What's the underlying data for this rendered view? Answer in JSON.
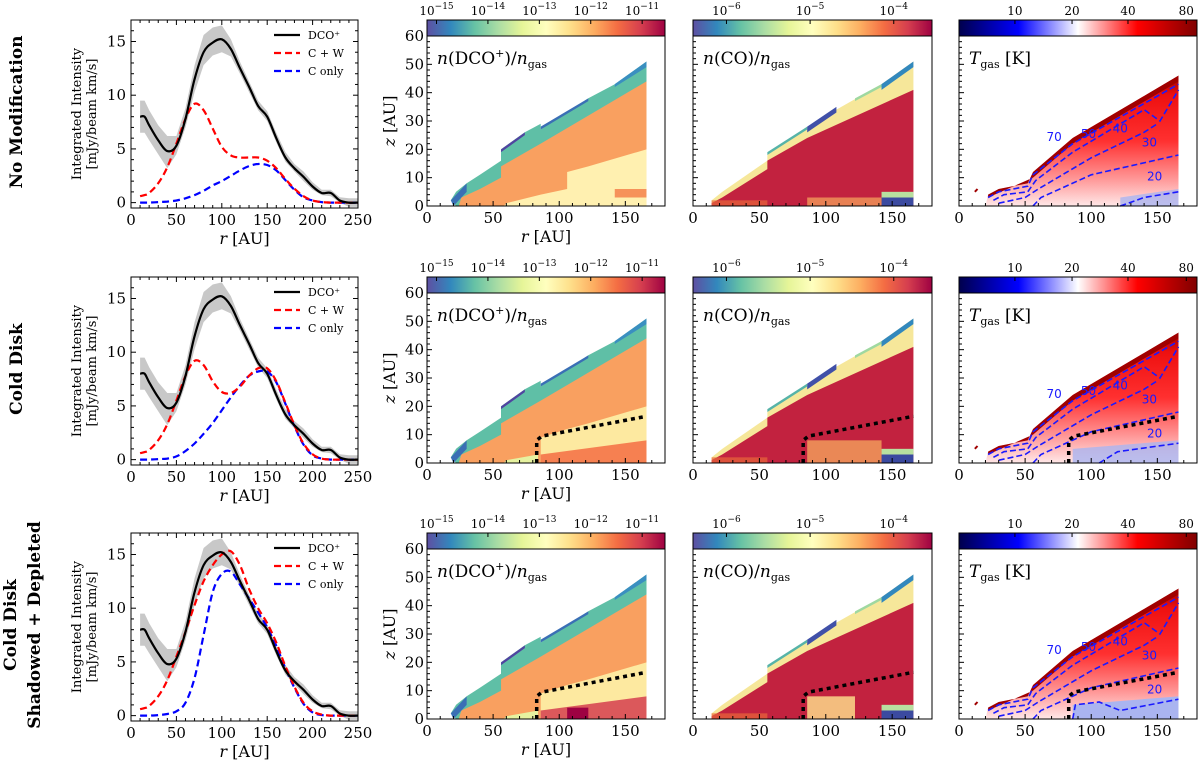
{
  "figure": {
    "rows": [
      {
        "label": [
          "No Modification"
        ],
        "key": "nomod"
      },
      {
        "label": [
          "Cold Disk"
        ],
        "key": "cold"
      },
      {
        "label": [
          "Cold Disk",
          "Shadowed + Depleted"
        ],
        "key": "shadow"
      }
    ],
    "line_xlabel": "r [AU]",
    "line_ylabel": [
      "Integrated Intensity",
      "[mJy/beam km/s]"
    ],
    "heat_xlabel": "r [AU]",
    "heat_ylabel": "z [AU]",
    "panel_titles": {
      "dco": "n(DCO⁺)/n_gas",
      "co": "n(CO)/n_gas",
      "tgas": "T_gas [K]"
    },
    "colorbars": {
      "dco": {
        "ticks": [
          "10^-15",
          "10^-14",
          "10^-13",
          "10^-12",
          "10^-11"
        ],
        "cmap": "Spectral_r"
      },
      "co": {
        "ticks": [
          "10^-6",
          "10^-5",
          "10^-4"
        ],
        "cmap": "Spectral_r"
      },
      "tgas": {
        "ticks": [
          "10",
          "20",
          "40",
          "80"
        ],
        "cmap": "seismic"
      }
    },
    "colors": {
      "dco_line": "#000000",
      "cw_line": "#ff0000",
      "conly_line": "#0000ff",
      "band": "#c8c8c8",
      "contour": "#1a1aff",
      "boundary": "#000000"
    }
  },
  "chart_data": [
    {
      "type": "line",
      "panel": "radial-profile",
      "rows": [
        "No Modification",
        "Cold Disk",
        "Cold Disk Shadowed + Depleted"
      ],
      "xlabel": "r [AU]",
      "ylabel": "Integrated Intensity [mJy/beam km/s]",
      "xlim": [
        0,
        250
      ],
      "ylim": [
        -0.5,
        17
      ],
      "xticks": [
        0,
        50,
        100,
        150,
        200,
        250
      ],
      "yticks": [
        0,
        5,
        10,
        15
      ],
      "legend": {
        "placement": "top-right",
        "entries": [
          "DCO⁺",
          "C + W",
          "C only"
        ]
      },
      "x": [
        10,
        15,
        20,
        30,
        40,
        50,
        60,
        70,
        80,
        90,
        100,
        110,
        120,
        130,
        140,
        150,
        160,
        170,
        180,
        190,
        200,
        210,
        220,
        230,
        240,
        250
      ],
      "observed": {
        "name": "DCO⁺",
        "values": [
          8.0,
          8.0,
          7.2,
          5.8,
          4.8,
          5.3,
          7.8,
          11.5,
          14.0,
          14.9,
          15.2,
          14.3,
          12.5,
          10.8,
          9.0,
          8.0,
          6.0,
          4.2,
          3.2,
          2.4,
          1.5,
          0.9,
          0.9,
          0.2,
          0.0,
          0.0
        ],
        "band_low": [
          6.5,
          6.5,
          5.8,
          4.5,
          3.2,
          4.5,
          7.0,
          10.3,
          12.8,
          13.7,
          14.0,
          13.6,
          12.0,
          10.3,
          8.6,
          7.6,
          5.6,
          3.8,
          2.9,
          2.0,
          1.2,
          0.7,
          0.6,
          0.0,
          -0.4,
          -0.4
        ],
        "band_high": [
          9.5,
          9.5,
          8.6,
          7.2,
          6.2,
          6.2,
          8.8,
          12.8,
          15.6,
          16.3,
          16.5,
          15.2,
          13.1,
          11.3,
          9.5,
          8.5,
          6.5,
          4.7,
          3.6,
          2.9,
          1.9,
          1.2,
          1.2,
          0.5,
          0.4,
          0.4
        ]
      },
      "models": {
        "No Modification": {
          "C + W": [
            0.6,
            0.7,
            0.9,
            1.8,
            3.3,
            5.5,
            7.8,
            9.2,
            8.6,
            6.9,
            5.2,
            4.4,
            4.2,
            4.2,
            4.2,
            3.9,
            3.2,
            2.2,
            1.3,
            0.6,
            0.2,
            0.05,
            0.0,
            0.0,
            0.0,
            0.0
          ],
          "C only": [
            0.0,
            0.0,
            0.0,
            0.05,
            0.1,
            0.2,
            0.4,
            0.7,
            1.1,
            1.6,
            2.0,
            2.5,
            3.0,
            3.4,
            3.6,
            3.5,
            3.0,
            2.1,
            1.2,
            0.5,
            0.2,
            0.05,
            0.0,
            0.0,
            0.0,
            0.0
          ]
        },
        "Cold Disk": {
          "C + W": [
            0.6,
            0.7,
            0.9,
            1.8,
            3.3,
            5.5,
            7.8,
            9.2,
            8.8,
            7.3,
            6.3,
            6.2,
            6.8,
            7.8,
            8.5,
            8.5,
            7.3,
            5.3,
            3.2,
            1.5,
            0.5,
            0.1,
            0.0,
            0.0,
            0.0,
            0.0
          ],
          "C only": [
            0.0,
            0.0,
            0.0,
            0.05,
            0.1,
            0.3,
            0.8,
            1.5,
            2.4,
            3.4,
            4.6,
            5.8,
            6.9,
            7.8,
            8.2,
            8.2,
            7.2,
            5.2,
            3.1,
            1.4,
            0.4,
            0.1,
            0.0,
            0.0,
            0.0,
            0.0
          ]
        },
        "Cold Disk Shadowed + Depleted": {
          "C + W": [
            0.6,
            0.7,
            0.9,
            1.8,
            3.3,
            5.5,
            7.8,
            10.3,
            12.5,
            14.0,
            15.0,
            15.3,
            14.0,
            11.8,
            10.0,
            8.6,
            6.8,
            4.6,
            2.7,
            1.2,
            0.4,
            0.1,
            0.0,
            0.0,
            0.0,
            0.0
          ],
          "C only": [
            0.0,
            0.0,
            0.0,
            0.05,
            0.15,
            0.4,
            1.2,
            3.5,
            7.5,
            11.5,
            13.2,
            13.4,
            12.2,
            10.9,
            9.6,
            8.2,
            6.5,
            4.4,
            2.6,
            1.1,
            0.3,
            0.05,
            0.0,
            0.0,
            0.0,
            0.0
          ]
        }
      }
    },
    {
      "type": "heatmap",
      "panel": "n(DCO+)/n_gas",
      "xlabel": "r [AU]",
      "ylabel": "z [AU]",
      "xlim": [
        0,
        180
      ],
      "ylim": [
        0,
        60
      ],
      "xticks": [
        0,
        50,
        100,
        150
      ],
      "yticks": [
        0,
        10,
        20,
        30,
        40,
        50,
        60
      ],
      "colorbar": {
        "scale": "log",
        "range": [
          1e-15,
          2e-11
        ],
        "ticks": [
          "10^-15",
          "10^-14",
          "10^-13",
          "10^-12",
          "10^-11"
        ]
      },
      "disk_extent_r": [
        18,
        166
      ],
      "surface_z": {
        "r": [
          18,
          30,
          56,
          74,
          86,
          122,
          142,
          166
        ],
        "z": [
          5,
          9,
          20,
          26,
          30,
          38,
          43,
          51
        ]
      },
      "note": "Upper layer ~1e-14 (blue-green), bulk ~1e-12 (orange), midplane r>60 ~1e-13 (yellow); in cold disks midplane r>85 ~1e-12 to 1e-11"
    },
    {
      "type": "heatmap",
      "panel": "n(CO)/n_gas",
      "xlabel": "r [AU]",
      "ylabel": "z [AU]",
      "xlim": [
        0,
        180
      ],
      "ylim": [
        0,
        60
      ],
      "xticks": [
        0,
        50,
        100,
        150
      ],
      "colorbar": {
        "scale": "log",
        "range": [
          1e-07,
          0.0002
        ],
        "ticks": [
          "10^-6",
          "10^-5",
          "10^-4"
        ]
      },
      "disk_extent_r": [
        14,
        166
      ],
      "note": "Bulk ~1e-4 (dark red), surface layer depleted (blue/yellow), midplane at r>140 depleted (blue)"
    },
    {
      "type": "heatmap",
      "panel": "T_gas [K]",
      "xlabel": "r [AU]",
      "ylabel": "z [AU]",
      "xlim": [
        0,
        180
      ],
      "ylim": [
        0,
        60
      ],
      "xticks": [
        0,
        50,
        100,
        150
      ],
      "colorbar": {
        "scale": "log",
        "range": [
          5,
          100
        ],
        "ticks": [
          "10",
          "20",
          "40",
          "80"
        ]
      },
      "contours": [
        20,
        30,
        40,
        50,
        70
      ],
      "cold_region_boundary": {
        "applies_to": [
          "Cold Disk",
          "Cold Disk Shadowed + Depleted"
        ],
        "r": [
          83,
          83,
          87,
          166
        ],
        "z": [
          0,
          8,
          9.5,
          16.5
        ]
      }
    }
  ]
}
